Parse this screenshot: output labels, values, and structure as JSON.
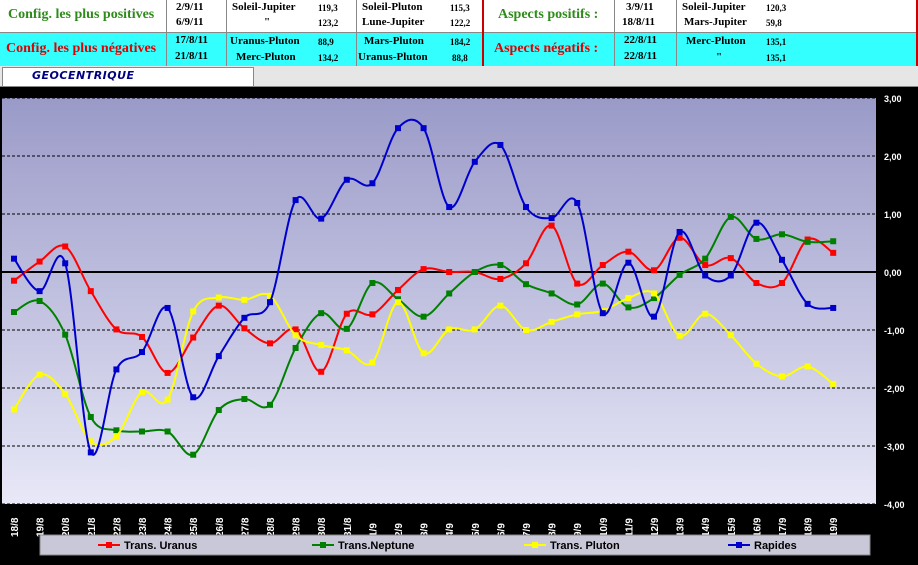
{
  "header": {
    "positive": {
      "title": "Config. les plus positives",
      "rows": [
        {
          "date": "2/9/11",
          "asp1": "Soleil-Jupiter",
          "v1": "119,3",
          "asp2": "Soleil-Pluton",
          "v2": "115,3"
        },
        {
          "date": "6/9/11",
          "asp1": "\"",
          "v1": "123,2",
          "asp2": "Lune-Jupiter",
          "v2": "122,2"
        }
      ]
    },
    "aspects_positive": {
      "title": "Aspects positifs :",
      "rows": [
        {
          "date": "3/9/11",
          "asp": "Soleil-Jupiter",
          "v": "120,3"
        },
        {
          "date": "18/8/11",
          "asp": "Mars-Jupiter",
          "v": "59,8"
        }
      ]
    },
    "negative": {
      "title": "Config. les plus négatives",
      "rows": [
        {
          "date": "17/8/11",
          "asp1": "Uranus-Pluton",
          "v1": "88,9",
          "asp2": "Mars-Pluton",
          "v2": "184,2"
        },
        {
          "date": "21/8/11",
          "asp1": "Merc-Pluton",
          "v1": "134,2",
          "asp2": "Uranus-Pluton",
          "v2": "88,8"
        }
      ]
    },
    "aspects_negative": {
      "title": "Aspects négatifs :",
      "rows": [
        {
          "date": "22/8/11",
          "asp": "Merc-Pluton",
          "v": "135,1"
        },
        {
          "date": "22/8/11",
          "asp": "\"",
          "v": "135,1"
        }
      ]
    }
  },
  "tab_label": "GEOCENTRIQUE",
  "chart_data": {
    "type": "line",
    "categories": [
      "18/8",
      "19/8",
      "20/8",
      "21/8",
      "22/8",
      "23/8",
      "24/8",
      "25/8",
      "26/8",
      "27/8",
      "28/8",
      "29/8",
      "30/8",
      "31/8",
      "1/9",
      "2/9",
      "3/9",
      "4/9",
      "5/9",
      "6/9",
      "7/9",
      "8/9",
      "9/9",
      "10/9",
      "11/9",
      "12/9",
      "13/9",
      "14/9",
      "15/9",
      "16/9",
      "17/9",
      "18/9",
      "19/9"
    ],
    "ylim": [
      -4,
      3
    ],
    "yticks": [
      "3,00",
      "2,00",
      "1,00",
      "0,00",
      "-1,00",
      "-2,00",
      "-3,00",
      "-4,00"
    ],
    "series": [
      {
        "name": "Trans. Uranus",
        "color": "#ff0000",
        "values": [
          -0.15,
          0.18,
          0.44,
          -0.33,
          -0.99,
          -1.12,
          -1.74,
          -1.13,
          -0.58,
          -0.97,
          -1.23,
          -0.99,
          -1.72,
          -0.72,
          -0.73,
          -0.31,
          0.05,
          0.0,
          0.0,
          -0.12,
          0.15,
          0.8,
          -0.2,
          0.12,
          0.35,
          0.03,
          0.59,
          0.12,
          0.24,
          -0.19,
          -0.19,
          0.56,
          0.33
        ]
      },
      {
        "name": "Trans.Neptune",
        "color": "#008000",
        "values": [
          -0.69,
          -0.5,
          -1.08,
          -2.5,
          -2.73,
          -2.75,
          -2.75,
          -3.15,
          -2.38,
          -2.19,
          -2.29,
          -1.31,
          -0.71,
          -0.98,
          -0.19,
          -0.47,
          -0.77,
          -0.37,
          0.0,
          0.12,
          -0.21,
          -0.37,
          -0.56,
          -0.2,
          -0.61,
          -0.45,
          -0.05,
          0.23,
          0.95,
          0.57,
          0.65,
          0.52,
          0.53
        ]
      },
      {
        "name": "Trans. Pluton",
        "color": "#ffff00",
        "values": [
          -2.37,
          -1.77,
          -2.1,
          -2.92,
          -2.83,
          -2.07,
          -2.2,
          -0.68,
          -0.44,
          -0.48,
          -0.41,
          -1.09,
          -1.26,
          -1.35,
          -1.56,
          -0.52,
          -1.4,
          -0.99,
          -0.99,
          -0.58,
          -1.0,
          -0.86,
          -0.73,
          -0.67,
          -0.45,
          -0.37,
          -1.1,
          -0.72,
          -1.09,
          -1.58,
          -1.8,
          -1.63,
          -1.93
        ]
      },
      {
        "name": "Rapides",
        "color": "#0000cc",
        "values": [
          0.23,
          -0.33,
          0.15,
          -3.11,
          -1.68,
          -1.38,
          -0.62,
          -2.16,
          -1.45,
          -0.79,
          -0.52,
          1.24,
          0.92,
          1.59,
          1.53,
          2.48,
          2.48,
          1.12,
          1.9,
          2.19,
          1.12,
          0.93,
          1.19,
          -0.71,
          0.16,
          -0.77,
          0.69,
          -0.06,
          -0.06,
          0.85,
          0.21,
          -0.55,
          -0.62
        ]
      }
    ]
  }
}
